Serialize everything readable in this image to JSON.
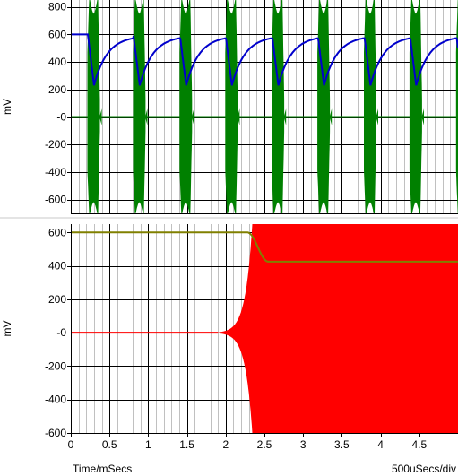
{
  "chart_data": [
    {
      "type": "line",
      "ylabel": "mV",
      "ylim": [
        -700,
        850
      ],
      "xlim": [
        0,
        5
      ],
      "y_ticks": [
        "800",
        "600",
        "400",
        "200",
        "-0",
        "-200",
        "-400",
        "-600"
      ],
      "y_tick_values": [
        800,
        600,
        400,
        200,
        0,
        -200,
        -400,
        -600
      ],
      "grid": true,
      "series": [
        {
          "color": "#008000",
          "kind": "burst",
          "burst_starts": [
            0.22,
            0.81,
            1.41,
            2.0,
            2.6,
            3.19,
            3.79,
            4.38,
            4.98
          ],
          "burst_length": 0.15,
          "envelope_peak": 850,
          "envelope_trough": -700
        },
        {
          "color": "#0000cc",
          "kind": "charge-discharge",
          "initial": 600,
          "minimum": 230,
          "maximum": 590,
          "drop_times": [
            0.22,
            0.81,
            1.41,
            2.0,
            2.6,
            3.19,
            3.79,
            4.38,
            4.98
          ]
        }
      ]
    },
    {
      "type": "line",
      "ylabel": "mV",
      "xlabel": "Time/mSecs",
      "ylim": [
        -600,
        650
      ],
      "xlim": [
        0,
        5
      ],
      "y_ticks": [
        "600",
        "400",
        "200",
        "-0",
        "-200",
        "-400",
        "-600"
      ],
      "y_tick_values": [
        600,
        400,
        200,
        0,
        -200,
        -400,
        -600
      ],
      "x_ticks": [
        "0",
        "0.5",
        "1",
        "1.5",
        "2",
        "2.5",
        "3",
        "3.5",
        "4",
        "4.5"
      ],
      "x_tick_values": [
        0,
        0.5,
        1,
        1.5,
        2,
        2.5,
        3,
        3.5,
        4,
        4.5
      ],
      "grid": true,
      "series": [
        {
          "color": "#ff0000",
          "kind": "growing-oscillation",
          "onset": 1.9,
          "saturation_time": 2.35,
          "saturated_top": 650,
          "saturated_bottom": -600
        },
        {
          "color": "#808000",
          "kind": "step-down",
          "initial": 600,
          "final": 425,
          "transition_start": 2.28,
          "transition_end": 2.55
        }
      ]
    }
  ],
  "timebase": "500uSecs/div"
}
